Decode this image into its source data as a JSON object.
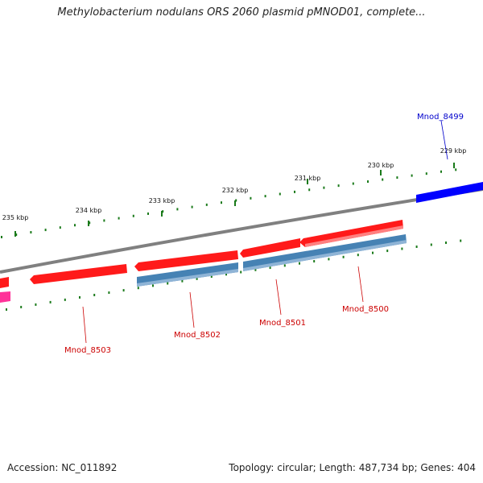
{
  "title": "Methylobacterium nodulans ORS 2060 plasmid pMNOD01, complete...",
  "footer": {
    "accession": "Accession: NC_011892",
    "topology": "Topology: circular; Length: 487,734 bp; Genes: 404"
  },
  "colors": {
    "backbone": "#808080",
    "forward_feature": "#ff0000",
    "reverse_feature": "#4682b4",
    "blue_feature": "#0000ff",
    "pink_feature": "#ff3399",
    "tick": "#1a7a1a",
    "label_red": "#cc0000",
    "label_blue": "#0000cc"
  },
  "ruler": {
    "ticks": [
      {
        "label": "229 kbp"
      },
      {
        "label": "230 kbp"
      },
      {
        "label": "231 kbp"
      },
      {
        "label": "232 kbp"
      },
      {
        "label": "233 kbp"
      },
      {
        "label": "234 kbp"
      },
      {
        "label": "235 kbp"
      }
    ]
  },
  "genes": [
    {
      "name": "Mnod_8499",
      "color": "blue"
    },
    {
      "name": "Mnod_8500",
      "color": "red"
    },
    {
      "name": "Mnod_8501",
      "color": "red"
    },
    {
      "name": "Mnod_8502",
      "color": "red"
    },
    {
      "name": "Mnod_8503",
      "color": "red"
    }
  ]
}
